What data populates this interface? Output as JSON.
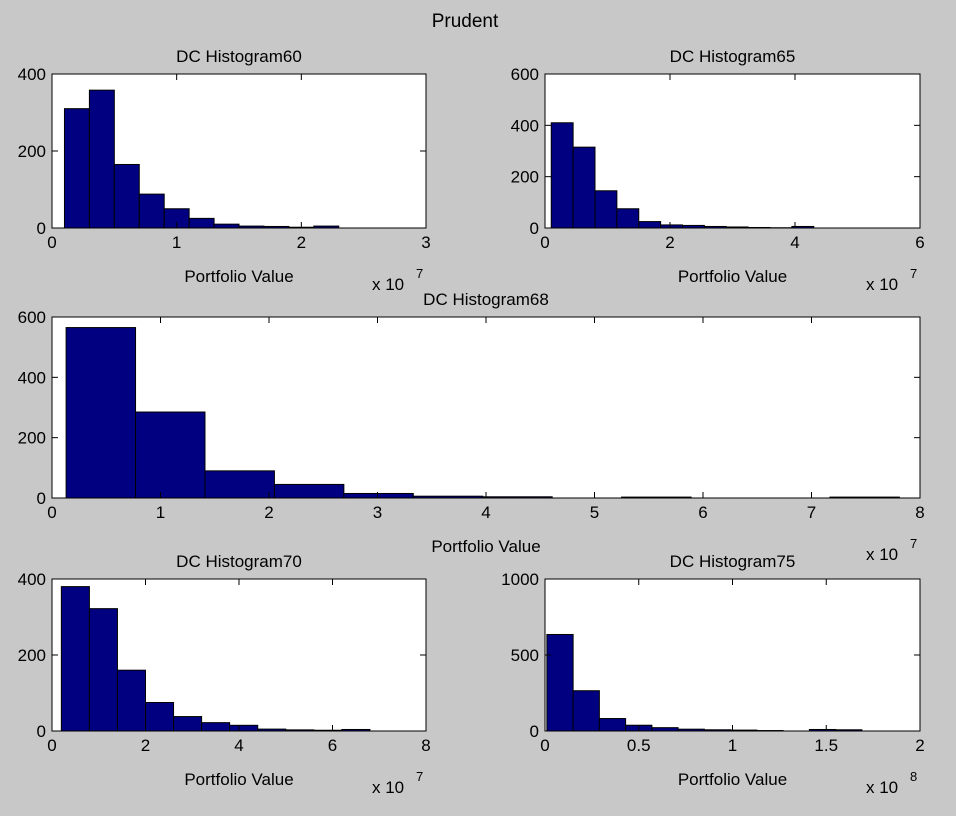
{
  "figure": {
    "title": "Prudent",
    "background": "#c8c8c8",
    "bar_color": "#000080"
  },
  "chart_data": [
    {
      "id": "h60",
      "type": "bar",
      "title": "DC Histogram60",
      "xlabel": "Portfolio Value",
      "multiplier_base": "x 10",
      "multiplier_exp": "7",
      "xlim": [
        0,
        3
      ],
      "ylim": [
        0,
        400
      ],
      "xticks": [
        0,
        1,
        2,
        3
      ],
      "yticks": [
        0,
        200,
        400
      ],
      "bin_edges": [
        0.1,
        0.3,
        0.5,
        0.7,
        0.9,
        1.1,
        1.3,
        1.5,
        1.7,
        1.9,
        2.1,
        2.3
      ],
      "counts": [
        310,
        358,
        165,
        88,
        50,
        25,
        10,
        5,
        4,
        2,
        5
      ]
    },
    {
      "id": "h65",
      "type": "bar",
      "title": "DC Histogram65",
      "xlabel": "Portfolio Value",
      "multiplier_base": "x 10",
      "multiplier_exp": "7",
      "xlim": [
        0,
        6
      ],
      "ylim": [
        0,
        600
      ],
      "xticks": [
        0,
        2,
        4,
        6
      ],
      "yticks": [
        0,
        200,
        400,
        600
      ],
      "bin_edges": [
        0.1,
        0.45,
        0.8,
        1.15,
        1.5,
        1.85,
        2.2,
        2.55,
        2.9,
        3.25,
        3.6,
        3.95,
        4.3
      ],
      "counts": [
        410,
        315,
        145,
        75,
        25,
        12,
        10,
        6,
        4,
        2,
        1,
        6
      ]
    },
    {
      "id": "h68",
      "type": "bar",
      "title": "DC Histogram68",
      "xlabel": "Portfolio Value",
      "multiplier_base": "x 10",
      "multiplier_exp": "7",
      "xlim": [
        0,
        8
      ],
      "ylim": [
        0,
        600
      ],
      "xticks": [
        0,
        1,
        2,
        3,
        4,
        5,
        6,
        7,
        8
      ],
      "yticks": [
        0,
        200,
        400,
        600
      ],
      "bin_edges": [
        0.13,
        0.77,
        1.41,
        2.05,
        2.69,
        3.33,
        3.97,
        4.61,
        5.25,
        5.89,
        6.53,
        7.17,
        7.81
      ],
      "counts": [
        565,
        285,
        90,
        45,
        15,
        6,
        4,
        0,
        3,
        0,
        0,
        3
      ]
    },
    {
      "id": "h70",
      "type": "bar",
      "title": "DC Histogram70",
      "xlabel": "Portfolio Value",
      "multiplier_base": "x 10",
      "multiplier_exp": "7",
      "xlim": [
        0,
        8
      ],
      "ylim": [
        0,
        400
      ],
      "xticks": [
        0,
        2,
        4,
        6,
        8
      ],
      "yticks": [
        0,
        200,
        400
      ],
      "bin_edges": [
        0.2,
        0.8,
        1.4,
        2.0,
        2.6,
        3.2,
        3.8,
        4.4,
        5.0,
        5.6,
        6.2,
        6.8
      ],
      "counts": [
        380,
        322,
        160,
        75,
        38,
        22,
        15,
        5,
        3,
        2,
        4
      ]
    },
    {
      "id": "h75",
      "type": "bar",
      "title": "DC Histogram75",
      "xlabel": "Portfolio Value",
      "multiplier_base": "x 10",
      "multiplier_exp": "8",
      "xlim": [
        0,
        2
      ],
      "ylim": [
        0,
        1000
      ],
      "xticks": [
        0,
        0.5,
        1,
        1.5,
        2
      ],
      "yticks": [
        0,
        500,
        1000
      ],
      "bin_edges": [
        0.01,
        0.15,
        0.29,
        0.43,
        0.57,
        0.71,
        0.85,
        0.99,
        1.13,
        1.27,
        1.41,
        1.55,
        1.69
      ],
      "counts": [
        635,
        265,
        82,
        38,
        22,
        12,
        8,
        6,
        3,
        0,
        10,
        8
      ]
    }
  ]
}
